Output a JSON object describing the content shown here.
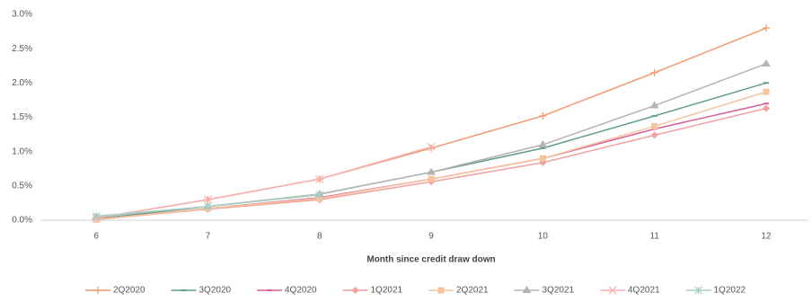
{
  "chart_data": {
    "type": "line",
    "x_label": "Month since credit draw down",
    "categories": [
      "6",
      "7",
      "8",
      "9",
      "10",
      "11",
      "12"
    ],
    "ylim": [
      0,
      3.0
    ],
    "yticks": [
      {
        "value": 0,
        "label": "0.0%"
      },
      {
        "value": 0.5,
        "label": "0.5%"
      },
      {
        "value": 1.0,
        "label": "1.0%"
      },
      {
        "value": 1.5,
        "label": "1.5%"
      },
      {
        "value": 2.0,
        "label": "2.0%"
      },
      {
        "value": 2.5,
        "label": "2.5%"
      },
      {
        "value": 3.0,
        "label": "3.0%"
      }
    ],
    "legend": "bottom",
    "series": [
      {
        "name": "2Q2020",
        "color": "#f29a72",
        "marker": "plus",
        "values": [
          0.03,
          0.3,
          0.6,
          1.05,
          1.52,
          2.15,
          2.8
        ]
      },
      {
        "name": "3Q2020",
        "color": "#5f9e8c",
        "marker": "dash",
        "values": [
          0.02,
          0.2,
          0.38,
          0.7,
          1.05,
          1.52,
          2.0
        ]
      },
      {
        "name": "4Q2020",
        "color": "#d4609a",
        "marker": "dash",
        "values": [
          0.01,
          0.17,
          0.33,
          0.6,
          0.9,
          1.33,
          1.7
        ]
      },
      {
        "name": "1Q2021",
        "color": "#f2a0a0",
        "marker": "diamond",
        "values": [
          0.01,
          0.16,
          0.3,
          0.56,
          0.84,
          1.24,
          1.63
        ]
      },
      {
        "name": "2Q2021",
        "color": "#f8c49c",
        "marker": "square",
        "values": [
          0.01,
          0.17,
          0.32,
          0.6,
          0.9,
          1.37,
          1.87
        ]
      },
      {
        "name": "3Q2021",
        "color": "#b4b4b4",
        "marker": "triangle",
        "values": [
          0.05,
          0.2,
          0.38,
          0.7,
          1.1,
          1.67,
          2.28
        ]
      },
      {
        "name": "4Q2021",
        "color": "#f7b2b2",
        "marker": "x",
        "values": [
          0.03,
          0.3,
          0.6,
          1.07,
          null,
          null,
          null
        ]
      },
      {
        "name": "1Q2022",
        "color": "#a8cfc0",
        "marker": "star",
        "values": [
          0.06,
          0.2,
          0.37,
          null,
          null,
          null,
          null
        ]
      }
    ]
  }
}
